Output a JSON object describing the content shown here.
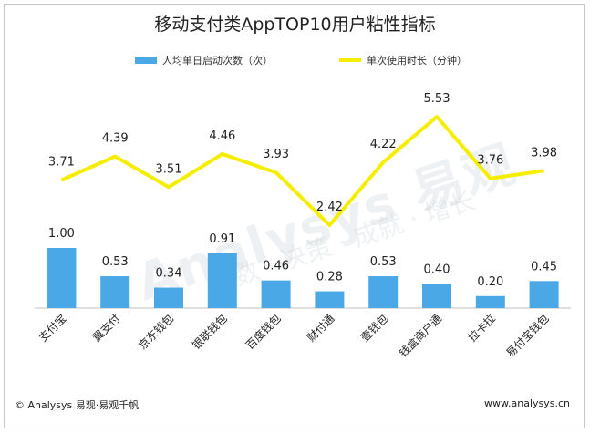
{
  "title": "移动支付类AppTOP10用户粘性指标",
  "legend": {
    "bar_label": "人均单日启动次数（次）",
    "line_label": "单次使用时长（分钟）"
  },
  "watermark": "Analysys 易观",
  "watermark_sub": "数 · 决策 · 成就 · 增长",
  "footer": {
    "copyright": "© Analysys 易观·易观千帆",
    "website": "www.analysys.cn"
  },
  "colors": {
    "bar": "#4aa8e6",
    "line": "#f5ee00"
  },
  "chart_data": {
    "type": "bar",
    "categories": [
      "支付宝",
      "翼支付",
      "京东钱包",
      "银联钱包",
      "百度钱包",
      "财付通",
      "壹钱包",
      "钱盒商户通",
      "拉卡拉",
      "易付宝钱包"
    ],
    "series": [
      {
        "name": "人均单日启动次数（次）",
        "type": "bar",
        "values": [
          1.0,
          0.53,
          0.34,
          0.91,
          0.46,
          0.28,
          0.53,
          0.4,
          0.2,
          0.45
        ]
      },
      {
        "name": "单次使用时长（分钟）",
        "type": "line",
        "values": [
          3.71,
          4.39,
          3.51,
          4.46,
          3.93,
          2.42,
          4.22,
          5.53,
          3.76,
          3.98
        ]
      }
    ],
    "title": "移动支付类AppTOP10用户粘性指标",
    "grid": false,
    "legend_position": "top"
  }
}
